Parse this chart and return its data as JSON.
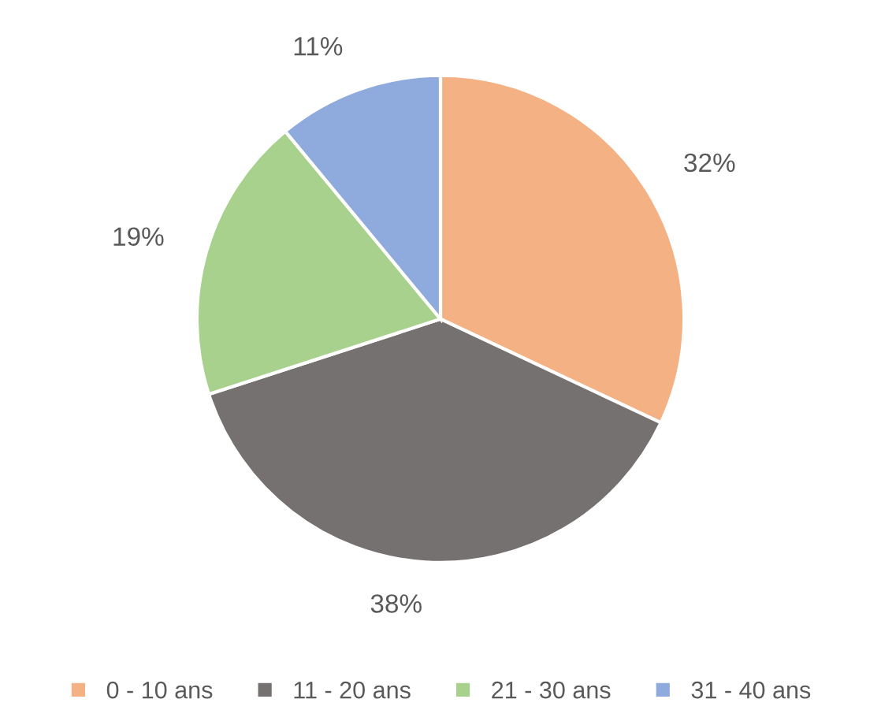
{
  "chart_data": {
    "type": "pie",
    "categories": [
      "0 - 10 ans",
      "11 - 20 ans",
      "21 - 30 ans",
      "31 - 40 ans"
    ],
    "values": [
      32,
      38,
      19,
      11
    ],
    "value_labels": [
      "32%",
      "38%",
      "19%",
      "11%"
    ],
    "colors": [
      "#f4b183",
      "#767171",
      "#a9d18e",
      "#8faadc"
    ],
    "legend": "bottom"
  }
}
